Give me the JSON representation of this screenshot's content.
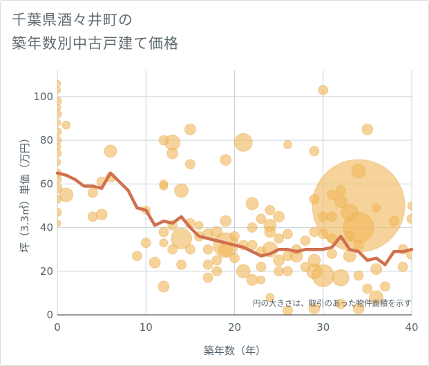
{
  "chart_data": {
    "type": "scatter",
    "title_lines": [
      "千葉県酒々井町の",
      "築年数別中古戸建て価格"
    ],
    "xlabel": "築年数（年）",
    "ylabel": "坪（3.3㎡）単価（万円）",
    "xlim": [
      0,
      40
    ],
    "ylim": [
      0,
      112
    ],
    "x_ticks": [
      0,
      10,
      20,
      30,
      40
    ],
    "y_ticks": [
      0,
      20,
      40,
      60,
      80,
      100
    ],
    "grid": true,
    "note": "円の大きさは、取引のあった物件面積を示す",
    "colors": {
      "bubble": "#f0b85c",
      "bubble_edge": "#e6a84a",
      "line": "#d0704f",
      "grid": "#c8d4d9"
    },
    "series": [
      {
        "name": "average",
        "type": "line",
        "x": [
          0,
          1,
          2,
          3,
          4,
          5,
          6,
          7,
          8,
          9,
          10,
          11,
          12,
          13,
          14,
          15,
          16,
          17,
          18,
          19,
          20,
          21,
          22,
          23,
          24,
          25,
          26,
          27,
          28,
          29,
          30,
          31,
          32,
          33,
          34,
          35,
          36,
          37,
          38,
          39,
          40
        ],
        "y": [
          65,
          64,
          62,
          59,
          59,
          58,
          65,
          61,
          57,
          49,
          48,
          41,
          43,
          42,
          45,
          40,
          36,
          35,
          34,
          33,
          32,
          31,
          29,
          27,
          28,
          30,
          30,
          29,
          30,
          30,
          30,
          31,
          36,
          30,
          29,
          25,
          26,
          23,
          29,
          29,
          30
        ]
      },
      {
        "name": "transactions",
        "type": "bubble",
        "points": [
          {
            "x": 0,
            "y": 106,
            "s": 5
          },
          {
            "x": 0,
            "y": 103,
            "s": 5
          },
          {
            "x": 0,
            "y": 98,
            "s": 6
          },
          {
            "x": 0,
            "y": 95,
            "s": 5
          },
          {
            "x": 0,
            "y": 92,
            "s": 6
          },
          {
            "x": 0,
            "y": 88,
            "s": 5
          },
          {
            "x": 0,
            "y": 84,
            "s": 6
          },
          {
            "x": 0,
            "y": 80,
            "s": 6
          },
          {
            "x": 0,
            "y": 77,
            "s": 5
          },
          {
            "x": 0,
            "y": 74,
            "s": 6
          },
          {
            "x": 0,
            "y": 70,
            "s": 5
          },
          {
            "x": 0,
            "y": 65,
            "s": 6
          },
          {
            "x": 0,
            "y": 62,
            "s": 6
          },
          {
            "x": 0,
            "y": 58,
            "s": 7
          },
          {
            "x": 0,
            "y": 53,
            "s": 6
          },
          {
            "x": 0,
            "y": 47,
            "s": 6
          },
          {
            "x": 0,
            "y": 42,
            "s": 5
          },
          {
            "x": 1,
            "y": 87,
            "s": 6
          },
          {
            "x": 1,
            "y": 55,
            "s": 10
          },
          {
            "x": 4,
            "y": 56,
            "s": 7
          },
          {
            "x": 4,
            "y": 45,
            "s": 7
          },
          {
            "x": 5,
            "y": 46,
            "s": 8
          },
          {
            "x": 5,
            "y": 61,
            "s": 7
          },
          {
            "x": 6,
            "y": 75,
            "s": 9
          },
          {
            "x": 6,
            "y": 63,
            "s": 7
          },
          {
            "x": 9,
            "y": 27,
            "s": 7
          },
          {
            "x": 10,
            "y": 33,
            "s": 7
          },
          {
            "x": 10,
            "y": 48,
            "s": 6
          },
          {
            "x": 11,
            "y": 24,
            "s": 8
          },
          {
            "x": 12,
            "y": 80,
            "s": 7
          },
          {
            "x": 12,
            "y": 60,
            "s": 6
          },
          {
            "x": 12,
            "y": 59,
            "s": 6
          },
          {
            "x": 12,
            "y": 38,
            "s": 7
          },
          {
            "x": 12,
            "y": 33,
            "s": 6
          },
          {
            "x": 12,
            "y": 13,
            "s": 8
          },
          {
            "x": 13,
            "y": 79,
            "s": 11
          },
          {
            "x": 13,
            "y": 74,
            "s": 8
          },
          {
            "x": 13,
            "y": 41,
            "s": 7
          },
          {
            "x": 13,
            "y": 30,
            "s": 7
          },
          {
            "x": 14,
            "y": 57,
            "s": 10
          },
          {
            "x": 14,
            "y": 35,
            "s": 15
          },
          {
            "x": 14,
            "y": 23,
            "s": 7
          },
          {
            "x": 15,
            "y": 85,
            "s": 8
          },
          {
            "x": 15,
            "y": 69,
            "s": 7
          },
          {
            "x": 15,
            "y": 42,
            "s": 7
          },
          {
            "x": 15,
            "y": 30,
            "s": 7
          },
          {
            "x": 16,
            "y": 41,
            "s": 6
          },
          {
            "x": 16,
            "y": 36,
            "s": 7
          },
          {
            "x": 17,
            "y": 37,
            "s": 8
          },
          {
            "x": 17,
            "y": 30,
            "s": 7
          },
          {
            "x": 17,
            "y": 23,
            "s": 7
          },
          {
            "x": 17,
            "y": 17,
            "s": 7
          },
          {
            "x": 18,
            "y": 38,
            "s": 8
          },
          {
            "x": 18,
            "y": 25,
            "s": 7
          },
          {
            "x": 18,
            "y": 20,
            "s": 7
          },
          {
            "x": 19,
            "y": 71,
            "s": 8
          },
          {
            "x": 19,
            "y": 43,
            "s": 8
          },
          {
            "x": 19,
            "y": 32,
            "s": 18
          },
          {
            "x": 19,
            "y": 30,
            "s": 10
          },
          {
            "x": 20,
            "y": 36,
            "s": 7
          },
          {
            "x": 20,
            "y": 26,
            "s": 7
          },
          {
            "x": 21,
            "y": 79,
            "s": 13
          },
          {
            "x": 21,
            "y": 32,
            "s": 7
          },
          {
            "x": 21,
            "y": 20,
            "s": 10
          },
          {
            "x": 22,
            "y": 51,
            "s": 9
          },
          {
            "x": 22,
            "y": 40,
            "s": 7
          },
          {
            "x": 22,
            "y": 32,
            "s": 7
          },
          {
            "x": 22,
            "y": 16,
            "s": 8
          },
          {
            "x": 23,
            "y": 44,
            "s": 7
          },
          {
            "x": 23,
            "y": 29,
            "s": 7
          },
          {
            "x": 23,
            "y": 22,
            "s": 7
          },
          {
            "x": 23,
            "y": 16,
            "s": 6
          },
          {
            "x": 24,
            "y": 48,
            "s": 7
          },
          {
            "x": 24,
            "y": 41,
            "s": 9
          },
          {
            "x": 24,
            "y": 38,
            "s": 8
          },
          {
            "x": 24,
            "y": 30,
            "s": 11
          },
          {
            "x": 24,
            "y": 8,
            "s": 6
          },
          {
            "x": 25,
            "y": 45,
            "s": 8
          },
          {
            "x": 25,
            "y": 35,
            "s": 7
          },
          {
            "x": 25,
            "y": 25,
            "s": 8
          },
          {
            "x": 25,
            "y": 20,
            "s": 7
          },
          {
            "x": 26,
            "y": 78,
            "s": 6
          },
          {
            "x": 26,
            "y": 37,
            "s": 7
          },
          {
            "x": 26,
            "y": 27,
            "s": 7
          },
          {
            "x": 26,
            "y": 20,
            "s": 7
          },
          {
            "x": 26,
            "y": 2,
            "s": 7
          },
          {
            "x": 27,
            "y": 30,
            "s": 7
          },
          {
            "x": 27,
            "y": 27,
            "s": 9
          },
          {
            "x": 28,
            "y": 34,
            "s": 7
          },
          {
            "x": 28,
            "y": 22,
            "s": 7
          },
          {
            "x": 29,
            "y": 75,
            "s": 7
          },
          {
            "x": 29,
            "y": 53,
            "s": 7
          },
          {
            "x": 29,
            "y": 38,
            "s": 7
          },
          {
            "x": 29,
            "y": 25,
            "s": 9
          },
          {
            "x": 29,
            "y": 20,
            "s": 11
          },
          {
            "x": 29,
            "y": 3,
            "s": 8
          },
          {
            "x": 30,
            "y": 103,
            "s": 7
          },
          {
            "x": 30,
            "y": 45,
            "s": 7
          },
          {
            "x": 30,
            "y": 37,
            "s": 7
          },
          {
            "x": 30,
            "y": 18,
            "s": 16
          },
          {
            "x": 31,
            "y": 55,
            "s": 7
          },
          {
            "x": 31,
            "y": 45,
            "s": 7
          },
          {
            "x": 31,
            "y": 35,
            "s": 7
          },
          {
            "x": 31,
            "y": 28,
            "s": 7
          },
          {
            "x": 32,
            "y": 57,
            "s": 7
          },
          {
            "x": 32,
            "y": 52,
            "s": 9
          },
          {
            "x": 32,
            "y": 17,
            "s": 12
          },
          {
            "x": 32,
            "y": 5,
            "s": 7
          },
          {
            "x": 33,
            "y": 47,
            "s": 12
          },
          {
            "x": 33,
            "y": 36,
            "s": 7
          },
          {
            "x": 33,
            "y": 27,
            "s": 9
          },
          {
            "x": 34,
            "y": 50,
            "s": 67
          },
          {
            "x": 34,
            "y": 40,
            "s": 22
          },
          {
            "x": 34,
            "y": 66,
            "s": 10
          },
          {
            "x": 34,
            "y": 32,
            "s": 7
          },
          {
            "x": 34,
            "y": 18,
            "s": 7
          },
          {
            "x": 34,
            "y": 3,
            "s": 8
          },
          {
            "x": 35,
            "y": 85,
            "s": 8
          },
          {
            "x": 35,
            "y": 12,
            "s": 7
          },
          {
            "x": 36,
            "y": 49,
            "s": 6
          },
          {
            "x": 36,
            "y": 21,
            "s": 8
          },
          {
            "x": 36,
            "y": 8,
            "s": 10
          },
          {
            "x": 37,
            "y": 13,
            "s": 7
          },
          {
            "x": 38,
            "y": 43,
            "s": 7
          },
          {
            "x": 39,
            "y": 30,
            "s": 7
          },
          {
            "x": 39,
            "y": 22,
            "s": 7
          },
          {
            "x": 40,
            "y": 50,
            "s": 6
          },
          {
            "x": 40,
            "y": 44,
            "s": 7
          },
          {
            "x": 40,
            "y": 28,
            "s": 8
          }
        ]
      }
    ]
  }
}
